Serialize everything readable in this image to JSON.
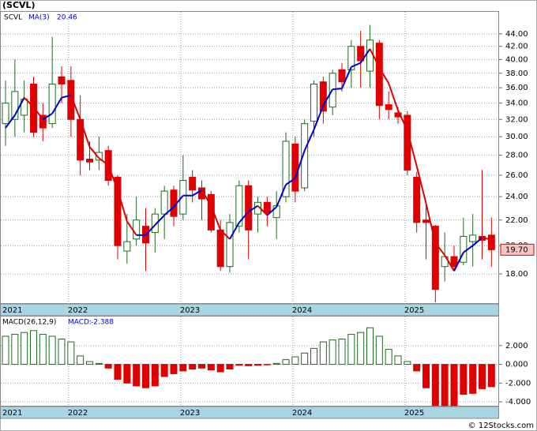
{
  "chart_data": [
    {
      "type": "candlestick",
      "title": "(SCVL)",
      "name": "SCVL",
      "categories": [
        "2021",
        null,
        null,
        null,
        null,
        null,
        null,
        "2022",
        null,
        null,
        null,
        null,
        null,
        null,
        null,
        null,
        null,
        null,
        null,
        "2023",
        null,
        null,
        null,
        null,
        null,
        null,
        null,
        null,
        null,
        null,
        null,
        "2024",
        null,
        null,
        null,
        null,
        null,
        null,
        null,
        null,
        null,
        null,
        null,
        "2025",
        null,
        null,
        null,
        null,
        null,
        null,
        null,
        null,
        null
      ],
      "open": [
        31.5,
        32,
        32.5,
        36.5,
        32.5,
        31.5,
        37.5,
        37,
        32,
        27.6,
        27.5,
        28.5,
        25.8,
        19.6,
        20.5,
        21.5,
        21,
        22.5,
        24.6,
        22.5,
        25.8,
        24.8,
        24.2,
        21.2,
        18.5,
        21.5,
        25,
        22.5,
        23.5,
        22.2,
        24,
        29.2,
        24.8,
        31.8,
        36.8,
        33.5,
        38.5,
        38.5,
        42,
        38.3,
        42.5,
        33.8,
        32.8,
        32.5,
        25.8,
        22,
        21.5,
        18.5,
        19.2,
        18.8,
        20.3,
        20.7,
        20.8
      ],
      "high": [
        37,
        40,
        37,
        37.5,
        34,
        43.5,
        39,
        39,
        35,
        29.5,
        30,
        29,
        26,
        22.5,
        24,
        23,
        23,
        25,
        25,
        28,
        26.5,
        25.5,
        24.5,
        22,
        22.5,
        25.5,
        25.5,
        24,
        24,
        24.5,
        30.5,
        30,
        32,
        37,
        37.5,
        38.5,
        39.5,
        43,
        44.5,
        45.5,
        43,
        35.5,
        33.5,
        33,
        26.3,
        23.5,
        21.6,
        21,
        20,
        22.2,
        22.5,
        26.5,
        22.2
      ],
      "low": [
        29,
        30,
        30.5,
        30,
        29.5,
        31,
        34,
        30,
        26,
        26.5,
        26.5,
        25,
        19,
        18.7,
        20,
        18.2,
        19.5,
        20.5,
        21.5,
        22,
        23.5,
        22,
        21,
        18.2,
        18.1,
        21,
        19,
        21,
        21.5,
        20.5,
        23.5,
        23.5,
        24.5,
        30,
        31.5,
        32.5,
        35.5,
        36,
        36,
        36,
        32,
        32,
        31.5,
        26,
        21,
        19,
        16.2,
        17.5,
        18.2,
        18.6,
        18.5,
        19,
        18.5
      ],
      "close": [
        34,
        35.5,
        34.5,
        30.5,
        31,
        36.5,
        36.5,
        32,
        27.5,
        27.3,
        28.3,
        25.5,
        20,
        20.3,
        22,
        20.2,
        22.5,
        24.5,
        22.3,
        25.5,
        24.6,
        23.8,
        21.2,
        18.5,
        21.8,
        25,
        21.2,
        23.5,
        22.6,
        23.2,
        29.5,
        24.5,
        31.5,
        36.5,
        33,
        38,
        36.8,
        42,
        39.8,
        43,
        33.7,
        33.2,
        32.3,
        26.5,
        21.8,
        21.8,
        17,
        19.2,
        18.5,
        20.7,
        20.8,
        20.4,
        19.7
      ],
      "close_labels": [
        null,
        null,
        null,
        null,
        null,
        null,
        null,
        null,
        null,
        null,
        null,
        null,
        null,
        null,
        null,
        null,
        null,
        null,
        null,
        null,
        null,
        null,
        null,
        null,
        null,
        null,
        null,
        null,
        null,
        null,
        null,
        null,
        null,
        null,
        null,
        null,
        null,
        null,
        null,
        null,
        null,
        null,
        null,
        null,
        null,
        null,
        null,
        null,
        null,
        null,
        null,
        null,
        "19.70"
      ],
      "up_color": "#1f6b1f",
      "down_color": "#e00000",
      "series": [
        {
          "name": "MA(3)",
          "rise_color": "#0000cc",
          "fall_color": "#e00000",
          "values": [
            31,
            32.5,
            34.7,
            33.5,
            32,
            32.7,
            34.7,
            35,
            32,
            28.9,
            27.7,
            27,
            24.6,
            21.9,
            20.8,
            20.8,
            21.6,
            22.4,
            23.1,
            24.1,
            24.1,
            24.6,
            23.2,
            21.2,
            20.5,
            21.8,
            22.7,
            23.2,
            22.4,
            23.1,
            25.1,
            25.7,
            28.5,
            30.8,
            33.7,
            35.8,
            35.9,
            38.9,
            39.5,
            41.6,
            38.8,
            36.6,
            33.1,
            30.7,
            26.9,
            23.4,
            20.2,
            19.3,
            18.2,
            19.5,
            20,
            20.6,
            20.46
          ]
        }
      ],
      "log_scale": true,
      "grid": true,
      "ylim": [
        16.1,
        47.9
      ],
      "yticks": [
        {
          "value": 18,
          "label": "18.00"
        },
        {
          "value": 20,
          "label": "20.00"
        },
        {
          "value": 22,
          "label": "22.00"
        },
        {
          "value": 24,
          "label": "24.00"
        },
        {
          "value": 26,
          "label": "26.00"
        },
        {
          "value": 28,
          "label": "28.00"
        },
        {
          "value": 30,
          "label": "30.00"
        },
        {
          "value": 32,
          "label": "32.00"
        },
        {
          "value": 34,
          "label": "34.00"
        },
        {
          "value": 36,
          "label": "36.00"
        },
        {
          "value": 38,
          "label": "38.00"
        },
        {
          "value": 40,
          "label": "40.00"
        },
        {
          "value": 42,
          "label": "42.00"
        },
        {
          "value": 44,
          "label": "44.00"
        }
      ]
    },
    {
      "type": "bar",
      "title": "MACD(26,12,9)",
      "series": [
        {
          "name": "MACD:",
          "pos_color": "#1f6b1f",
          "neg_color": "#e00000",
          "values": [
            3.0,
            3.2,
            3.4,
            3.6,
            3.2,
            3.0,
            2.7,
            2.4,
            0.9,
            0.3,
            0.1,
            -0.4,
            -1.6,
            -2.0,
            -2.3,
            -2.5,
            -2.3,
            -1.3,
            -1.0,
            -0.7,
            -0.5,
            -0.4,
            -0.6,
            -0.8,
            -0.5,
            -0.1,
            -0.15,
            -0.1,
            -0.05,
            0.1,
            0.5,
            0.8,
            1.2,
            1.7,
            2.4,
            2.6,
            2.7,
            3.2,
            3.4,
            3.9,
            3.0,
            1.6,
            0.9,
            0.3,
            -0.7,
            -2.5,
            -4.4,
            -4.4,
            -4.4,
            -3.2,
            -3.1,
            -2.6,
            -2.388
          ]
        }
      ],
      "grid": true,
      "ylim": [
        -4.5,
        5.1
      ],
      "yticks": [
        {
          "value": 2,
          "label": "2.000"
        },
        {
          "value": 0,
          "label": "0.000"
        },
        {
          "value": -2,
          "label": "-2.000"
        },
        {
          "value": -4,
          "label": "-4.000"
        }
      ]
    }
  ],
  "source": "© 12Stocks.com"
}
